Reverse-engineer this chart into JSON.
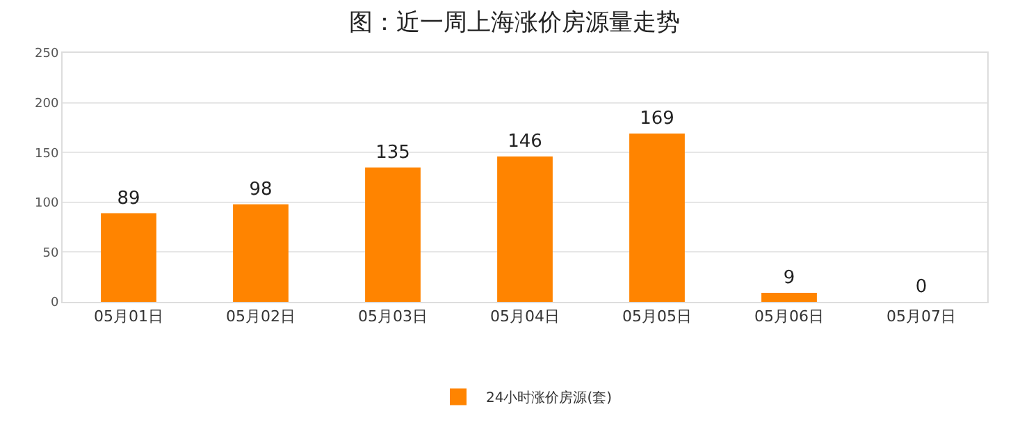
{
  "chart_data": {
    "type": "bar",
    "title": "图：近一周上海涨价房源量走势",
    "categories": [
      "05月01日",
      "05月02日",
      "05月03日",
      "05月04日",
      "05月05日",
      "05月06日",
      "05月07日"
    ],
    "series": [
      {
        "name": "24小时涨价房源(套)",
        "color": "#ff8400",
        "values": [
          89,
          98,
          135,
          146,
          169,
          9,
          0
        ]
      }
    ],
    "ylim": [
      0,
      250
    ],
    "yticks": [
      0,
      50,
      100,
      150,
      200,
      250
    ],
    "grid": "y",
    "legend": "bottom",
    "data_labels": true
  }
}
